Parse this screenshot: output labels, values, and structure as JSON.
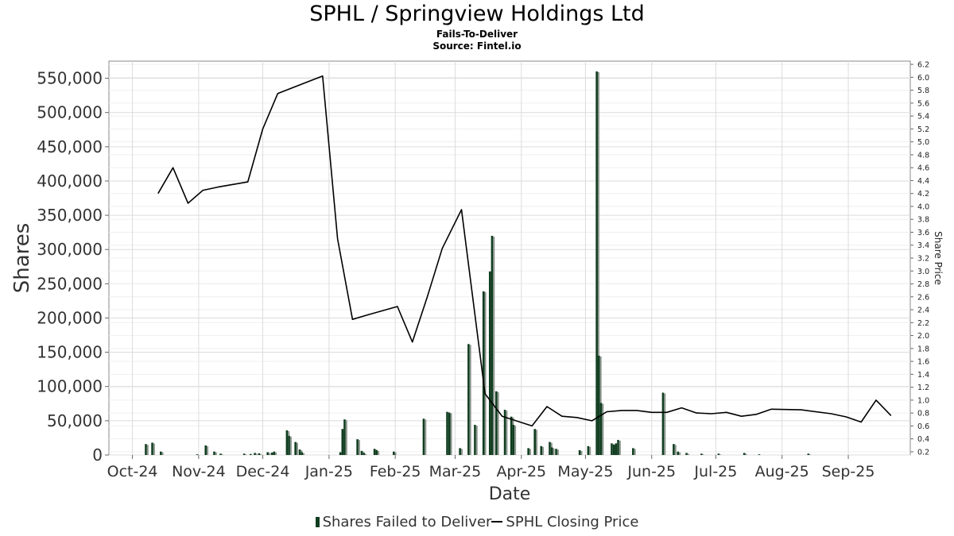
{
  "title": "SPHL / Springview Holdings Ltd",
  "subtitle": "Fails-To-Deliver",
  "source": "Source: Fintel.io",
  "legend": {
    "bars": "Shares Failed to Deliver",
    "line": "SPHL Closing Price"
  },
  "colors": {
    "bar": "#0f3d1f",
    "bar_side": "#8a948c",
    "line": "#000000",
    "grid": "#dcdcdc"
  },
  "chart_data": {
    "type": "bar",
    "xlabel": "Date",
    "ylabel": "Shares",
    "y2label": "Share Price",
    "xlim": [
      "2024-09-20",
      "2025-09-30"
    ],
    "ylim": [
      0,
      575000
    ],
    "y2lim": [
      0.15,
      6.25
    ],
    "grid": true,
    "legend_position": "bottom",
    "x_ticks": [
      {
        "date": "2024-10-01",
        "label": "Oct-24"
      },
      {
        "date": "2024-11-01",
        "label": "Nov-24"
      },
      {
        "date": "2024-12-01",
        "label": "Dec-24"
      },
      {
        "date": "2025-01-01",
        "label": "Jan-25"
      },
      {
        "date": "2025-02-01",
        "label": "Feb-25"
      },
      {
        "date": "2025-03-01",
        "label": "Mar-25"
      },
      {
        "date": "2025-04-01",
        "label": "Apr-25"
      },
      {
        "date": "2025-05-01",
        "label": "May-25"
      },
      {
        "date": "2025-06-01",
        "label": "Jun-25"
      },
      {
        "date": "2025-07-01",
        "label": "Jul-25"
      },
      {
        "date": "2025-08-01",
        "label": "Aug-25"
      },
      {
        "date": "2025-09-01",
        "label": "Sep-25"
      }
    ],
    "y_ticks": [
      {
        "value": 0,
        "label": "0"
      },
      {
        "value": 50000,
        "label": "50,000"
      },
      {
        "value": 100000,
        "label": "100,000"
      },
      {
        "value": 150000,
        "label": "150,000"
      },
      {
        "value": 200000,
        "label": "200,000"
      },
      {
        "value": 250000,
        "label": "250,000"
      },
      {
        "value": 300000,
        "label": "300,000"
      },
      {
        "value": 350000,
        "label": "350,000"
      },
      {
        "value": 400000,
        "label": "400,000"
      },
      {
        "value": 450000,
        "label": "450,000"
      },
      {
        "value": 500000,
        "label": "500,000"
      },
      {
        "value": 550000,
        "label": "550,000"
      }
    ],
    "y2_ticks": [
      "0.2",
      "0.4",
      "0.6",
      "0.8",
      "1.0",
      "1.2",
      "1.4",
      "1.6",
      "1.8",
      "2.0",
      "2.2",
      "2.4",
      "2.6",
      "2.8",
      "3.0",
      "3.2",
      "3.4",
      "3.6",
      "3.8",
      "4.0",
      "4.2",
      "4.4",
      "4.6",
      "4.8",
      "5.0",
      "5.2",
      "5.4",
      "5.6",
      "5.8",
      "6.0",
      "6.2"
    ],
    "series": [
      {
        "name": "Shares Failed to Deliver",
        "kind": "bar",
        "points": [
          [
            "2024-10-07",
            16000
          ],
          [
            "2024-10-10",
            18000
          ],
          [
            "2024-10-14",
            5000
          ],
          [
            "2024-10-31",
            1000
          ],
          [
            "2024-11-04",
            14000
          ],
          [
            "2024-11-08",
            5000
          ],
          [
            "2024-11-11",
            2000
          ],
          [
            "2024-11-22",
            2000
          ],
          [
            "2024-11-25",
            1500
          ],
          [
            "2024-11-27",
            3000
          ],
          [
            "2024-11-29",
            2500
          ],
          [
            "2024-12-03",
            4000
          ],
          [
            "2024-12-05",
            3500
          ],
          [
            "2024-12-06",
            5000
          ],
          [
            "2024-12-12",
            36000
          ],
          [
            "2024-12-13",
            28000
          ],
          [
            "2024-12-16",
            19000
          ],
          [
            "2024-12-18",
            8000
          ],
          [
            "2024-12-19",
            4000
          ],
          [
            "2025-01-06",
            4000
          ],
          [
            "2025-01-07",
            38000
          ],
          [
            "2025-01-08",
            52000
          ],
          [
            "2025-01-14",
            23000
          ],
          [
            "2025-01-16",
            6000
          ],
          [
            "2025-01-17",
            3000
          ],
          [
            "2025-01-22",
            9000
          ],
          [
            "2025-01-23",
            7000
          ],
          [
            "2025-01-31",
            5000
          ],
          [
            "2025-02-14",
            53000
          ],
          [
            "2025-02-25",
            63000
          ],
          [
            "2025-02-26",
            62000
          ],
          [
            "2025-03-03",
            10000
          ],
          [
            "2025-03-07",
            162000
          ],
          [
            "2025-03-10",
            44000
          ],
          [
            "2025-03-14",
            239000
          ],
          [
            "2025-03-17",
            268000
          ],
          [
            "2025-03-18",
            320000
          ],
          [
            "2025-03-20",
            93000
          ],
          [
            "2025-03-24",
            66000
          ],
          [
            "2025-03-27",
            56000
          ],
          [
            "2025-03-28",
            44000
          ],
          [
            "2025-04-04",
            10000
          ],
          [
            "2025-04-07",
            38000
          ],
          [
            "2025-04-10",
            13000
          ],
          [
            "2025-04-14",
            19000
          ],
          [
            "2025-04-15",
            11000
          ],
          [
            "2025-04-17",
            9000
          ],
          [
            "2025-04-28",
            7000
          ],
          [
            "2025-05-02",
            13000
          ],
          [
            "2025-05-06",
            560000
          ],
          [
            "2025-05-07",
            145000
          ],
          [
            "2025-05-08",
            76000
          ],
          [
            "2025-05-13",
            17000
          ],
          [
            "2025-05-14",
            15000
          ],
          [
            "2025-05-15",
            17000
          ],
          [
            "2025-05-16",
            22000
          ],
          [
            "2025-05-23",
            10000
          ],
          [
            "2025-06-06",
            91000
          ],
          [
            "2025-06-11",
            16000
          ],
          [
            "2025-06-13",
            5000
          ],
          [
            "2025-06-17",
            3000
          ],
          [
            "2025-06-24",
            2000
          ],
          [
            "2025-07-02",
            2000
          ],
          [
            "2025-07-14",
            3000
          ],
          [
            "2025-07-21",
            1000
          ],
          [
            "2025-08-13",
            2000
          ]
        ]
      },
      {
        "name": "SPHL Closing Price",
        "kind": "line",
        "axis": "right",
        "points": [
          [
            "2024-10-13",
            4.2
          ],
          [
            "2024-10-20",
            4.6
          ],
          [
            "2024-10-27",
            4.05
          ],
          [
            "2024-11-03",
            4.25
          ],
          [
            "2024-11-10",
            4.3
          ],
          [
            "2024-11-24",
            4.38
          ],
          [
            "2024-12-01",
            5.2
          ],
          [
            "2024-12-08",
            5.75
          ],
          [
            "2024-12-29",
            6.02
          ],
          [
            "2025-01-05",
            3.5
          ],
          [
            "2025-01-12",
            2.25
          ],
          [
            "2025-01-19",
            2.32
          ],
          [
            "2025-02-02",
            2.45
          ],
          [
            "2025-02-09",
            1.9
          ],
          [
            "2025-02-16",
            2.6
          ],
          [
            "2025-02-23",
            3.35
          ],
          [
            "2025-03-04",
            3.95
          ],
          [
            "2025-03-15",
            1.1
          ],
          [
            "2025-03-23",
            0.75
          ],
          [
            "2025-04-06",
            0.6
          ],
          [
            "2025-04-13",
            0.9
          ],
          [
            "2025-04-20",
            0.75
          ],
          [
            "2025-04-27",
            0.73
          ],
          [
            "2025-05-04",
            0.68
          ],
          [
            "2025-05-11",
            0.82
          ],
          [
            "2025-05-18",
            0.84
          ],
          [
            "2025-05-25",
            0.84
          ],
          [
            "2025-06-01",
            0.81
          ],
          [
            "2025-06-08",
            0.81
          ],
          [
            "2025-06-15",
            0.88
          ],
          [
            "2025-06-22",
            0.8
          ],
          [
            "2025-06-29",
            0.79
          ],
          [
            "2025-07-06",
            0.81
          ],
          [
            "2025-07-13",
            0.75
          ],
          [
            "2025-07-20",
            0.78
          ],
          [
            "2025-07-27",
            0.86
          ],
          [
            "2025-08-10",
            0.85
          ],
          [
            "2025-08-24",
            0.79
          ],
          [
            "2025-08-31",
            0.74
          ],
          [
            "2025-09-07",
            0.66
          ],
          [
            "2025-09-14",
            1.0
          ],
          [
            "2025-09-21",
            0.76
          ]
        ]
      }
    ]
  }
}
